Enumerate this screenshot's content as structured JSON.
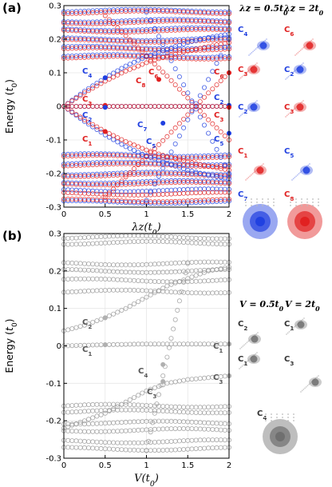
{
  "panel_a": {
    "label": "(a)",
    "ylabel": "Energy (t0)",
    "xlabel": "λz(t0)",
    "xticks": [
      "0",
      "0.5",
      "1",
      "1.5",
      "2"
    ],
    "yticks": [
      "0.3",
      "0.2",
      "0.1",
      "0",
      "-0.1",
      "-0.2",
      "-0.3"
    ],
    "side_titles": [
      "λz = 0.5t0",
      "λz = 2t0"
    ],
    "side_labels": [
      "C4",
      "C6",
      "C3",
      "C2",
      "C2",
      "C3",
      "C1",
      "C5",
      "C7",
      "C8"
    ],
    "annotations": [
      "C4",
      "C3",
      "C2",
      "C1",
      "C8",
      "C6",
      "C7",
      "C5",
      "C6",
      "C2",
      "C3",
      "C5"
    ],
    "colors": {
      "blue": "#1f3fe0",
      "red": "#e02020"
    }
  },
  "panel_b": {
    "label": "(b)",
    "ylabel": "Energy (t0)",
    "xlabel": "V(t0)",
    "xticks": [
      "0",
      "0.5",
      "1",
      "1.5",
      "2"
    ],
    "yticks": [
      "0.3",
      "0.2",
      "0.1",
      "0",
      "-0.1",
      "-0.2",
      "-0.3"
    ],
    "side_titles": [
      "V = 0.5t0",
      "V = 2t0"
    ],
    "side_labels": [
      "C2",
      "C1",
      "C1",
      "C3",
      "C4"
    ],
    "annotations": [
      "C2",
      "C1",
      "C1",
      "C4",
      "C3",
      "C3"
    ],
    "colors": {
      "gray": "#999999"
    }
  },
  "chart_data": [
    {
      "type": "scatter",
      "title": "",
      "xlabel": "λz(t0)",
      "ylabel": "Energy (t0)",
      "xlim": [
        0,
        2
      ],
      "ylim": [
        -0.3,
        0.3
      ],
      "grid": true,
      "flat_levels_blue": [
        0.285,
        0.255,
        0.23,
        0.2,
        0.175,
        0.15,
        -0.145,
        -0.17,
        -0.2,
        -0.225,
        -0.25,
        -0.285
      ],
      "flat_levels_red": [
        0.28,
        0.25,
        0.225,
        0.195,
        0.17,
        0.145,
        -0.15,
        -0.175,
        -0.205,
        -0.23,
        -0.26,
        -0.28
      ],
      "series": [
        {
          "color": "blue",
          "x": [
            0,
            0.25,
            0.5,
            0.75,
            1.0,
            1.25,
            1.5,
            1.75,
            2.0
          ],
          "y": [
            0.0,
            0.045,
            0.085,
            0.12,
            0.148,
            0.17,
            0.19,
            0.205,
            0.215
          ]
        },
        {
          "color": "blue",
          "x": [
            0,
            0.25,
            0.5,
            0.75,
            1.0,
            1.25,
            1.5,
            1.75,
            2.0
          ],
          "y": [
            0.0,
            -0.045,
            -0.085,
            -0.12,
            -0.148,
            -0.17,
            -0.19,
            -0.205,
            -0.215
          ]
        },
        {
          "color": "red",
          "x": [
            0,
            0.25,
            0.5,
            0.75,
            1.0,
            1.25,
            1.5,
            1.75,
            2.0
          ],
          "y": [
            0.0,
            0.04,
            0.075,
            0.105,
            0.13,
            0.15,
            0.165,
            0.178,
            0.19
          ]
        },
        {
          "color": "red",
          "x": [
            0,
            0.25,
            0.5,
            0.75,
            1.0,
            1.25,
            1.5,
            1.75,
            2.0
          ],
          "y": [
            0.0,
            -0.04,
            -0.075,
            -0.105,
            -0.13,
            -0.15,
            -0.165,
            -0.178,
            -0.19
          ]
        },
        {
          "color": "red",
          "x": [
            0.5,
            0.75,
            1.0,
            1.25,
            1.5,
            1.75,
            2.0
          ],
          "y": [
            0.27,
            0.21,
            0.15,
            0.09,
            0.025,
            -0.04,
            -0.1
          ]
        },
        {
          "color": "red",
          "x": [
            0.5,
            0.75,
            1.0,
            1.25,
            1.5,
            1.75,
            2.0
          ],
          "y": [
            -0.27,
            -0.21,
            -0.15,
            -0.09,
            -0.025,
            0.04,
            0.1
          ]
        },
        {
          "color": "blue",
          "x": [
            1.0,
            1.25,
            1.5,
            1.75,
            2.0
          ],
          "y": [
            -0.28,
            -0.16,
            -0.04,
            0.08,
            0.2
          ]
        },
        {
          "color": "blue",
          "x": [
            1.0,
            1.25,
            1.5,
            1.75,
            2.0
          ],
          "y": [
            0.28,
            0.16,
            0.04,
            -0.08,
            -0.2
          ]
        },
        {
          "color": "blue",
          "x": [
            0,
            0.5,
            1.0,
            1.5,
            2.0
          ],
          "y": [
            0.0,
            0.0,
            0.0,
            0.0,
            0.0
          ]
        },
        {
          "color": "red",
          "x": [
            0,
            0.5,
            1.0,
            1.5,
            2.0
          ],
          "y": [
            0.0,
            0.0,
            0.0,
            0.0,
            0.0
          ]
        }
      ],
      "highlighted_points": [
        {
          "label": "C4",
          "color": "blue",
          "x": 0.5,
          "y": 0.085
        },
        {
          "label": "C3",
          "color": "red",
          "x": 0.5,
          "y": 0.003
        },
        {
          "label": "C2",
          "color": "blue",
          "x": 0.5,
          "y": -0.003
        },
        {
          "label": "C1",
          "color": "red",
          "x": 0.5,
          "y": -0.075
        },
        {
          "label": "C8",
          "color": "red",
          "x": 1.15,
          "y": 0.08
        },
        {
          "label": "C6",
          "color": "red",
          "x": 2.0,
          "y": 0.1
        },
        {
          "label": "C7",
          "color": "blue",
          "x": 1.2,
          "y": -0.05
        },
        {
          "label": "C5",
          "color": "blue",
          "x": 2.0,
          "y": -0.08
        },
        {
          "label": "C2",
          "color": "blue",
          "x": 2.0,
          "y": 0.003
        },
        {
          "label": "C3",
          "color": "red",
          "x": 2.0,
          "y": -0.003
        }
      ]
    },
    {
      "type": "scatter",
      "title": "",
      "xlabel": "V(t0)",
      "ylabel": "Energy (t0)",
      "xlim": [
        0,
        2
      ],
      "ylim": [
        -0.3,
        0.3
      ],
      "grid": true,
      "flat_levels": [
        0.29,
        0.275,
        0.22,
        0.2,
        0.175,
        0.145,
        -0.16,
        -0.175,
        -0.205,
        -0.225,
        -0.255,
        -0.275
      ],
      "series": [
        {
          "color": "gray",
          "x": [
            0,
            0.25,
            0.5,
            0.75,
            1.0,
            1.25,
            1.5,
            1.75,
            2.0
          ],
          "y": [
            0.04,
            0.055,
            0.075,
            0.1,
            0.13,
            0.16,
            0.18,
            0.2,
            0.21
          ]
        },
        {
          "color": "gray",
          "x": [
            0,
            0.25,
            0.5,
            0.75,
            1.0,
            1.25,
            1.5,
            1.75,
            2.0
          ],
          "y": [
            -0.22,
            -0.2,
            -0.18,
            -0.15,
            -0.12,
            -0.1,
            -0.09,
            -0.085,
            -0.08
          ]
        },
        {
          "color": "gray",
          "x": [
            0,
            0.5,
            1.0,
            1.5,
            2.0
          ],
          "y": [
            0.0,
            0.003,
            0.005,
            0.005,
            0.005
          ]
        },
        {
          "color": "gray",
          "x": [
            1.0,
            1.1,
            1.2,
            1.3,
            1.4,
            1.5
          ],
          "y": [
            -0.28,
            -0.18,
            -0.08,
            0.02,
            0.12,
            0.22
          ]
        }
      ],
      "highlighted_points": [
        {
          "label": "C2",
          "x": 0.5,
          "y": 0.075
        },
        {
          "label": "C1",
          "x": 0.5,
          "y": 0.003
        },
        {
          "label": "C1",
          "x": 2.0,
          "y": 0.005
        },
        {
          "label": "C4",
          "x": 1.2,
          "y": -0.05
        },
        {
          "label": "C3",
          "x": 1.2,
          "y": -0.095
        },
        {
          "label": "C3",
          "x": 2.0,
          "y": -0.08
        }
      ]
    }
  ]
}
